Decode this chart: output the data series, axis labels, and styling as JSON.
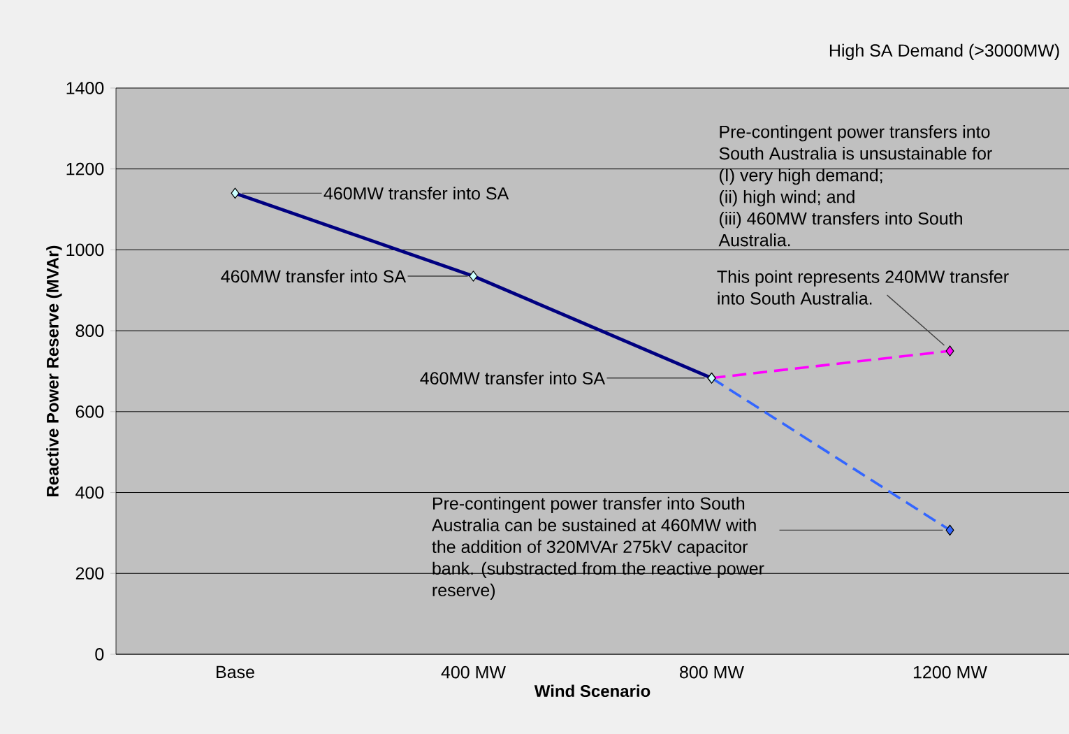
{
  "chart_data": {
    "type": "line",
    "title": "High SA Demand (>3000MW)",
    "xlabel": "Wind Scenario",
    "ylabel": "Reactive Power Reserve (MVAr)",
    "categories": [
      "Base",
      "400 MW",
      "800 MW",
      "1200 MW"
    ],
    "series": [
      {
        "color": "#000080",
        "line_style": "solid",
        "values": [
          1140,
          935,
          683,
          null
        ]
      },
      {
        "color": "#ff00ff",
        "line_style": "dashed",
        "values": [
          null,
          null,
          683,
          750
        ]
      },
      {
        "color": "#3366ff",
        "line_style": "dashed",
        "values": [
          null,
          null,
          683,
          307
        ]
      }
    ],
    "ylim": [
      0,
      1400
    ],
    "yticks": [
      0,
      200,
      400,
      600,
      800,
      1000,
      1200,
      1400
    ],
    "grid": "y",
    "marker": "diamond",
    "annotations": [
      {
        "text": "460MW transfer into SA",
        "x": "Base",
        "y": 1140
      },
      {
        "text": "460MW transfer into SA",
        "x": "400 MW",
        "y": 935
      },
      {
        "text": "460MW transfer into SA",
        "x": "800 MW",
        "y": 683
      },
      {
        "text": "This point represents 240MW transfer into South Australia.",
        "x": "1200 MW",
        "y": 750
      },
      {
        "text": "Pre-contingent power transfer into South Australia can be sustained at 460MW with the addition of 320MVAr 275kV capacitor bank. (substracted from the reactive power reserve)",
        "x": "1200 MW",
        "y": 307
      },
      "Pre-contingent power transfers into South Australia is unsustainable for",
      "(I)   very high demand;",
      "(ii)  high wind; and",
      "(iii) 460MW transfers into South Australia."
    ]
  }
}
